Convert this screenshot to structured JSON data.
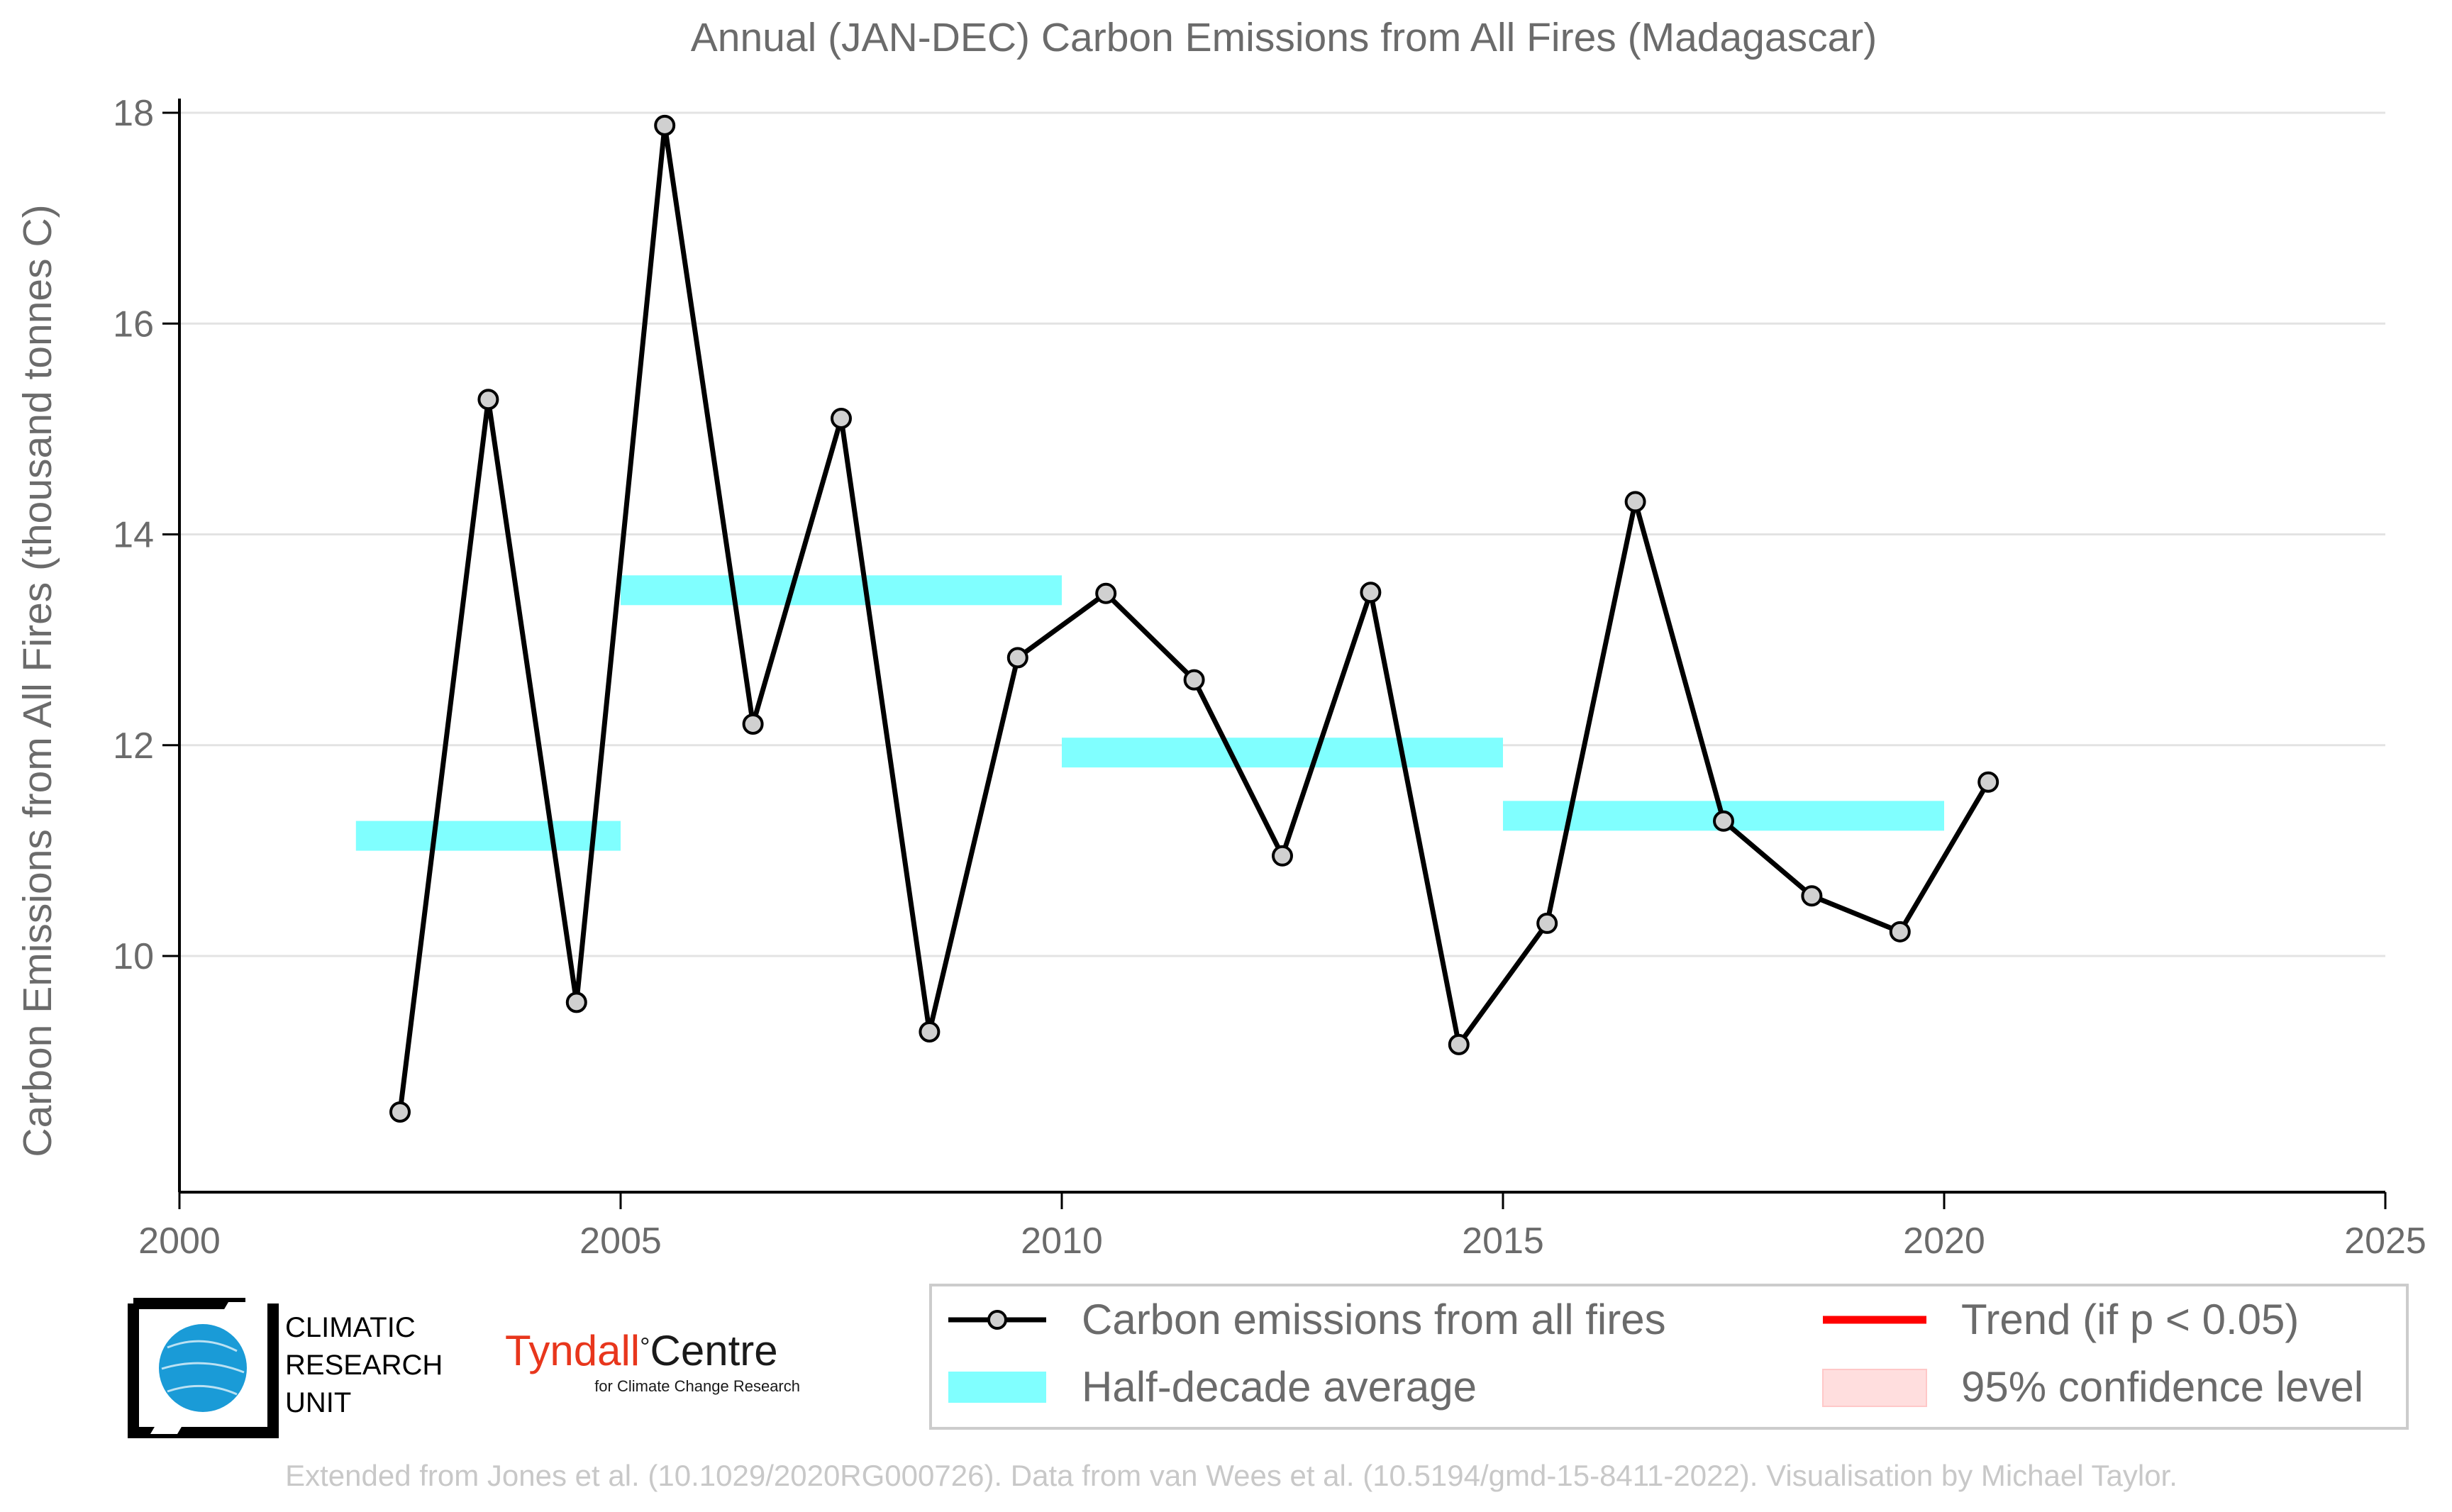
{
  "title": "Annual (JAN-DEC) Carbon Emissions from All Fires (Madagascar)",
  "chart_data": {
    "type": "line",
    "title": "Annual (JAN-DEC) Carbon Emissions from All Fires (Madagascar)",
    "xlabel": "",
    "ylabel": "Carbon Emissions from All Fires (thousand tonnes C)",
    "xlim": [
      2000,
      2025
    ],
    "ylim": [
      7.8,
      18.1
    ],
    "xticks": [
      2000,
      2005,
      2010,
      2015,
      2020,
      2025
    ],
    "yticks": [
      10,
      12,
      14,
      16,
      18
    ],
    "grid": "horizontal",
    "legend_position": "bottom-right",
    "series": [
      {
        "name": "Carbon emissions from all fires",
        "color": "#000000",
        "marker_fill": "#d0d0d0",
        "x": [
          2002.5,
          2003.5,
          2004.5,
          2005.5,
          2006.5,
          2007.5,
          2008.5,
          2009.5,
          2010.5,
          2011.5,
          2012.5,
          2013.5,
          2014.5,
          2015.5,
          2016.5,
          2017.5,
          2018.5,
          2019.5,
          2020.5
        ],
        "y": [
          8.52,
          15.28,
          9.56,
          17.88,
          12.2,
          15.1,
          9.28,
          12.83,
          13.44,
          12.62,
          10.95,
          13.45,
          9.16,
          10.31,
          14.31,
          11.28,
          10.57,
          10.23,
          11.65
        ]
      },
      {
        "name": "Half-decade average",
        "color": "#80ffff",
        "segments": [
          {
            "x_start": 2002,
            "x_end": 2005,
            "y": 11.14
          },
          {
            "x_start": 2005,
            "x_end": 2010,
            "y": 13.47
          },
          {
            "x_start": 2010,
            "x_end": 2015,
            "y": 11.93
          },
          {
            "x_start": 2015,
            "x_end": 2020,
            "y": 11.33
          }
        ]
      }
    ]
  },
  "legend": {
    "items": [
      {
        "label": "Carbon emissions from all fires",
        "kind": "line-marker",
        "color": "#000000"
      },
      {
        "label": "Half-decade average",
        "kind": "band",
        "color": "#80ffff"
      },
      {
        "label": "Trend (if p < 0.05)",
        "kind": "line",
        "color": "#ff0000"
      },
      {
        "label": "95% confidence level",
        "kind": "patch",
        "color": "#ffdede"
      }
    ]
  },
  "logos": {
    "cru": {
      "line1": "CLIMATIC",
      "line2": "RESEARCH",
      "line3": "UNIT",
      "color": "#1a9bd7"
    },
    "tyndall": {
      "name_part1": "Tyndall",
      "degree": "°",
      "name_part2": "Centre",
      "subtitle": "for Climate Change Research",
      "color": "#e8361c"
    }
  },
  "credit": "Extended from Jones et al. (10.1029/2020RG000726). Data from van Wees et al. (10.5194/gmd-15-8411-2022). Visualisation by Michael Taylor."
}
